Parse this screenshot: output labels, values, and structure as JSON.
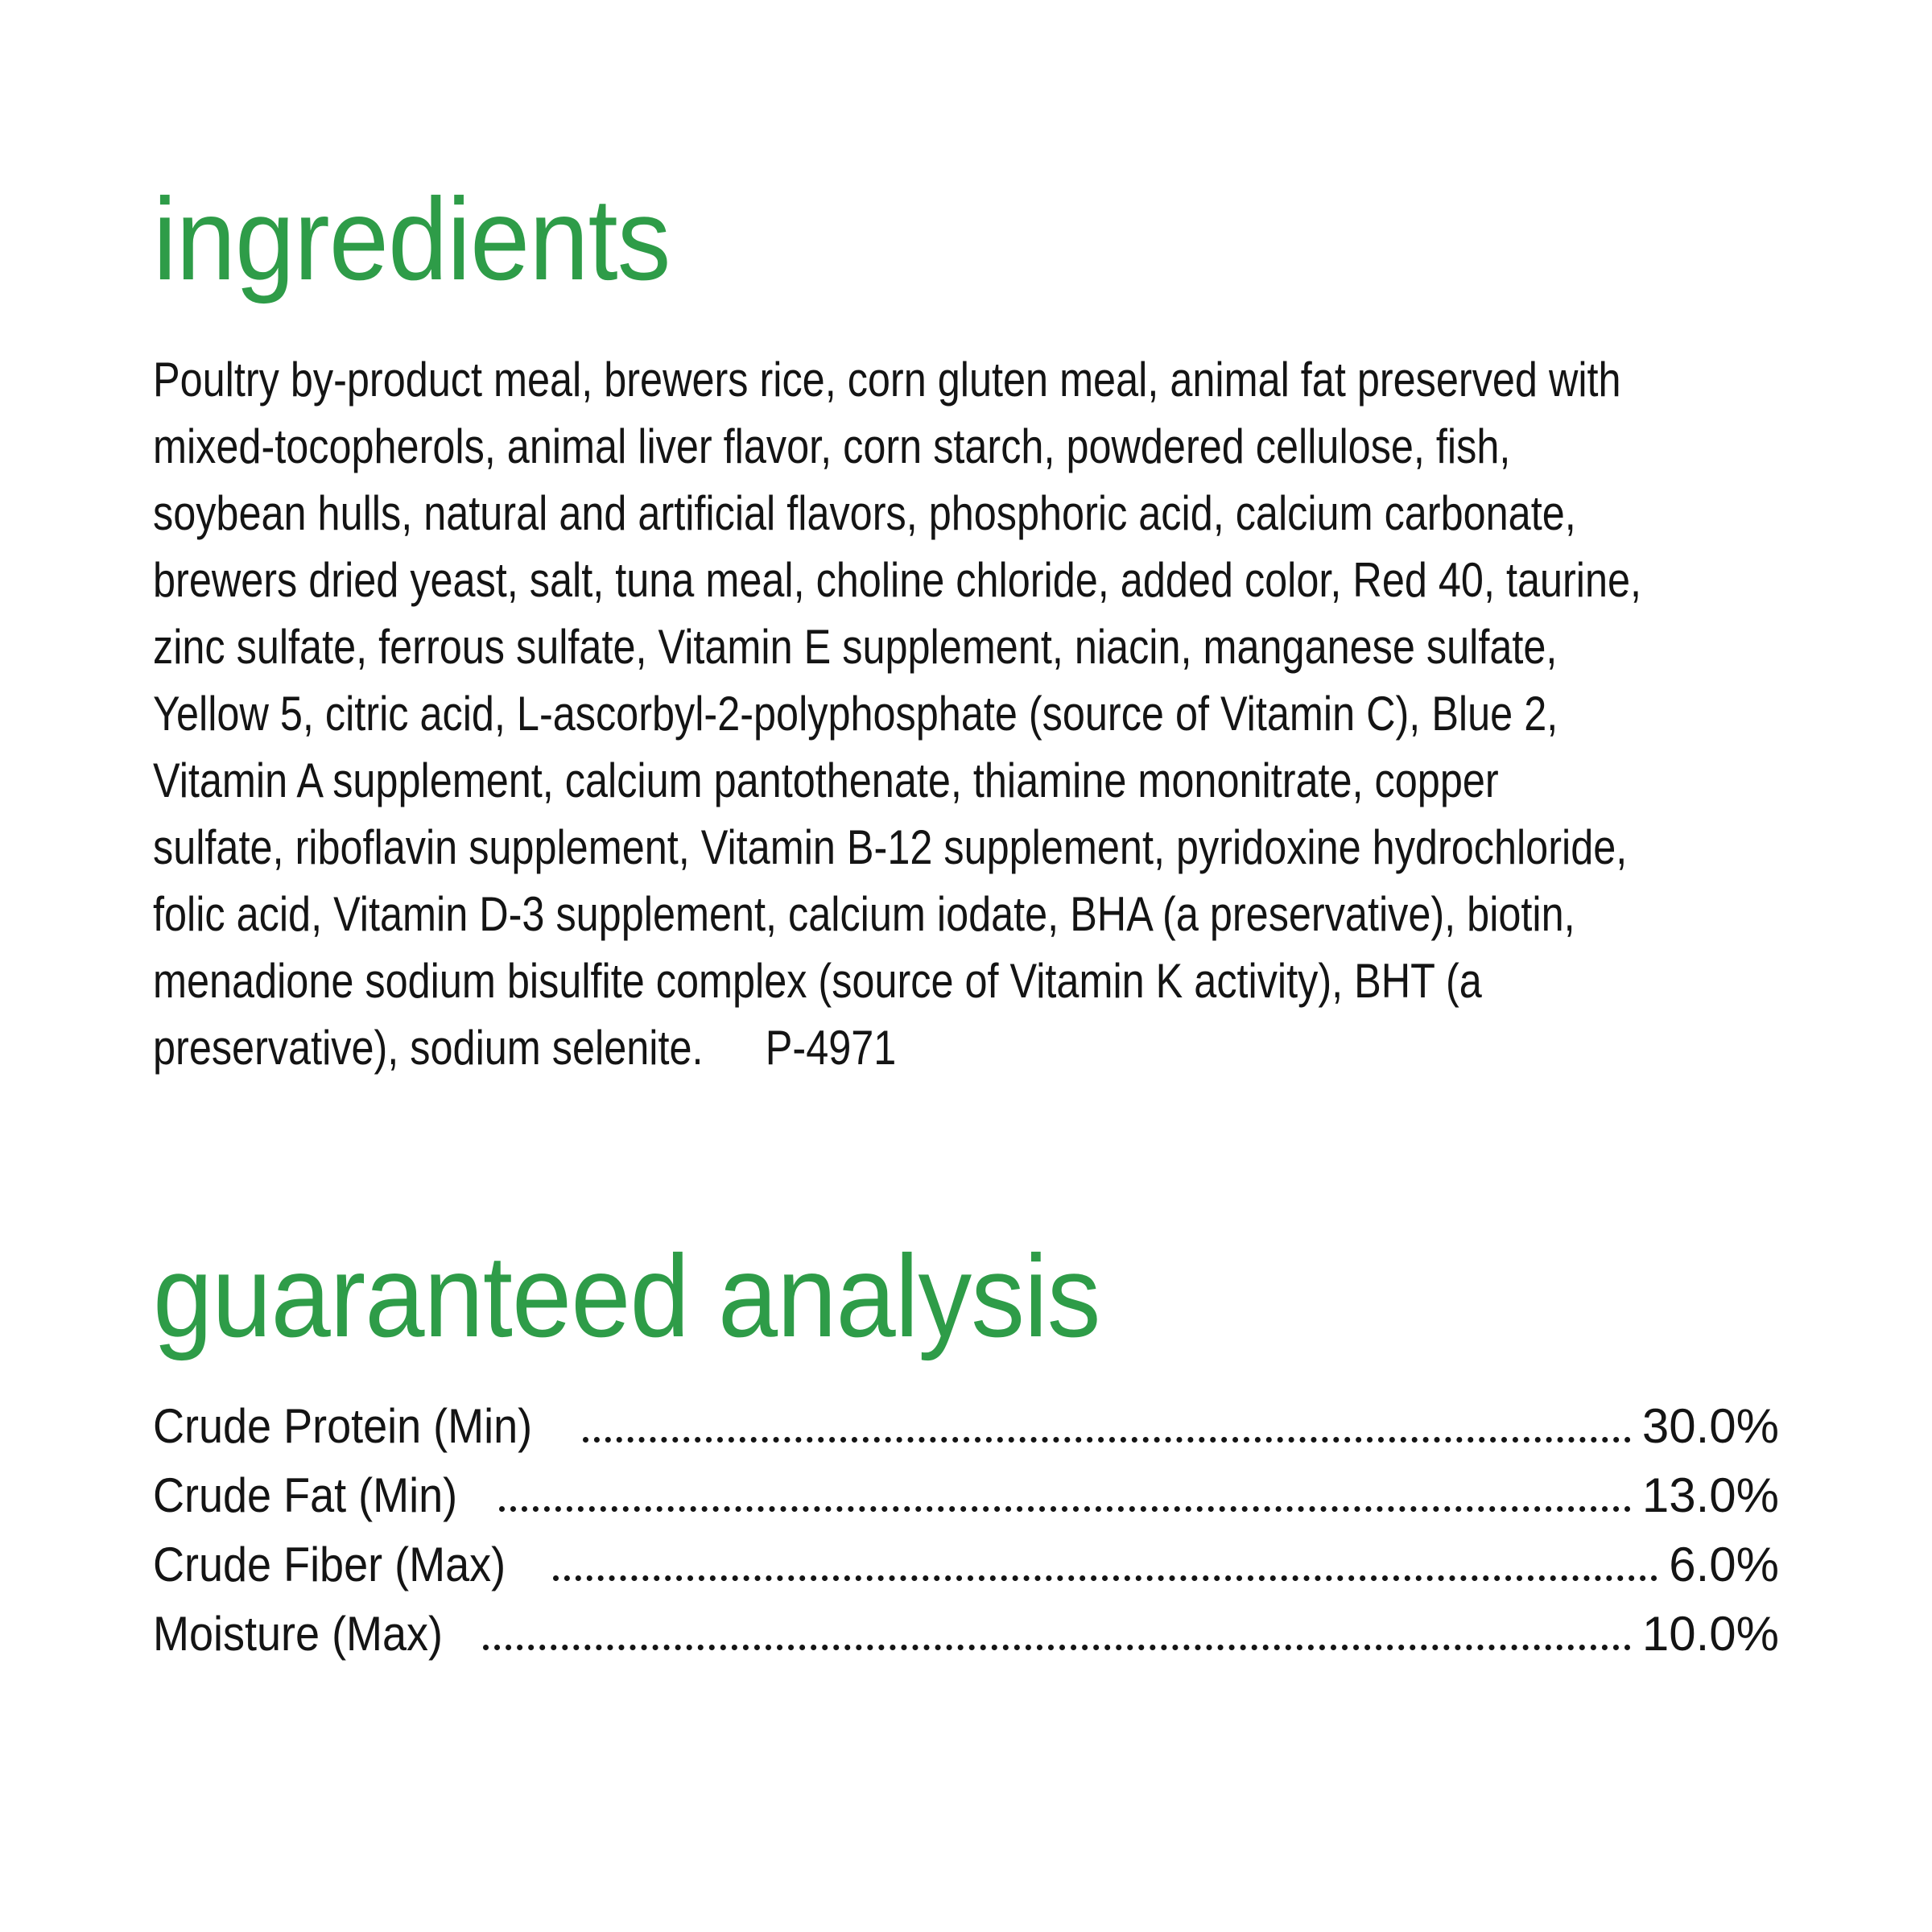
{
  "page": {
    "background_color": "#ffffff",
    "accent_green": "#2e9c48",
    "text_color": "#141414"
  },
  "ingredients": {
    "heading": "ingredients",
    "lines": [
      "Poultry by-product meal, brewers rice, corn gluten meal, animal fat preserved with",
      "mixed-tocopherols, animal liver flavor, corn starch, powdered cellulose, fish,",
      "soybean hulls, natural and artificial flavors, phosphoric acid, calcium carbonate,",
      "brewers dried yeast, salt, tuna meal, choline chloride, added color, Red 40, taurine,",
      "zinc sulfate, ferrous sulfate, Vitamin E supplement, niacin, manganese sulfate,",
      "Yellow 5, citric acid, L-ascorbyl-2-polyphosphate (source of Vitamin C), Blue 2,",
      "Vitamin A supplement, calcium pantothenate, thiamine mononitrate, copper",
      "sulfate, riboflavin supplement, Vitamin B-12 supplement, pyridoxine hydrochloride,",
      "folic acid, Vitamin D-3 supplement, calcium iodate, BHA (a preservative), biotin,",
      "menadione sodium bisulfite complex (source of Vitamin K activity), BHT (a",
      "preservative), sodium selenite."
    ],
    "code": "P-4971"
  },
  "guaranteed_analysis": {
    "heading": "guaranteed analysis",
    "rows": [
      {
        "label": "Crude Protein (Min)",
        "value": "30.0%"
      },
      {
        "label": "Crude Fat (Min)",
        "value": "13.0%"
      },
      {
        "label": "Crude Fiber (Max)",
        "value": "6.0%"
      },
      {
        "label": "Moisture (Max)",
        "value": "10.0%"
      }
    ]
  }
}
